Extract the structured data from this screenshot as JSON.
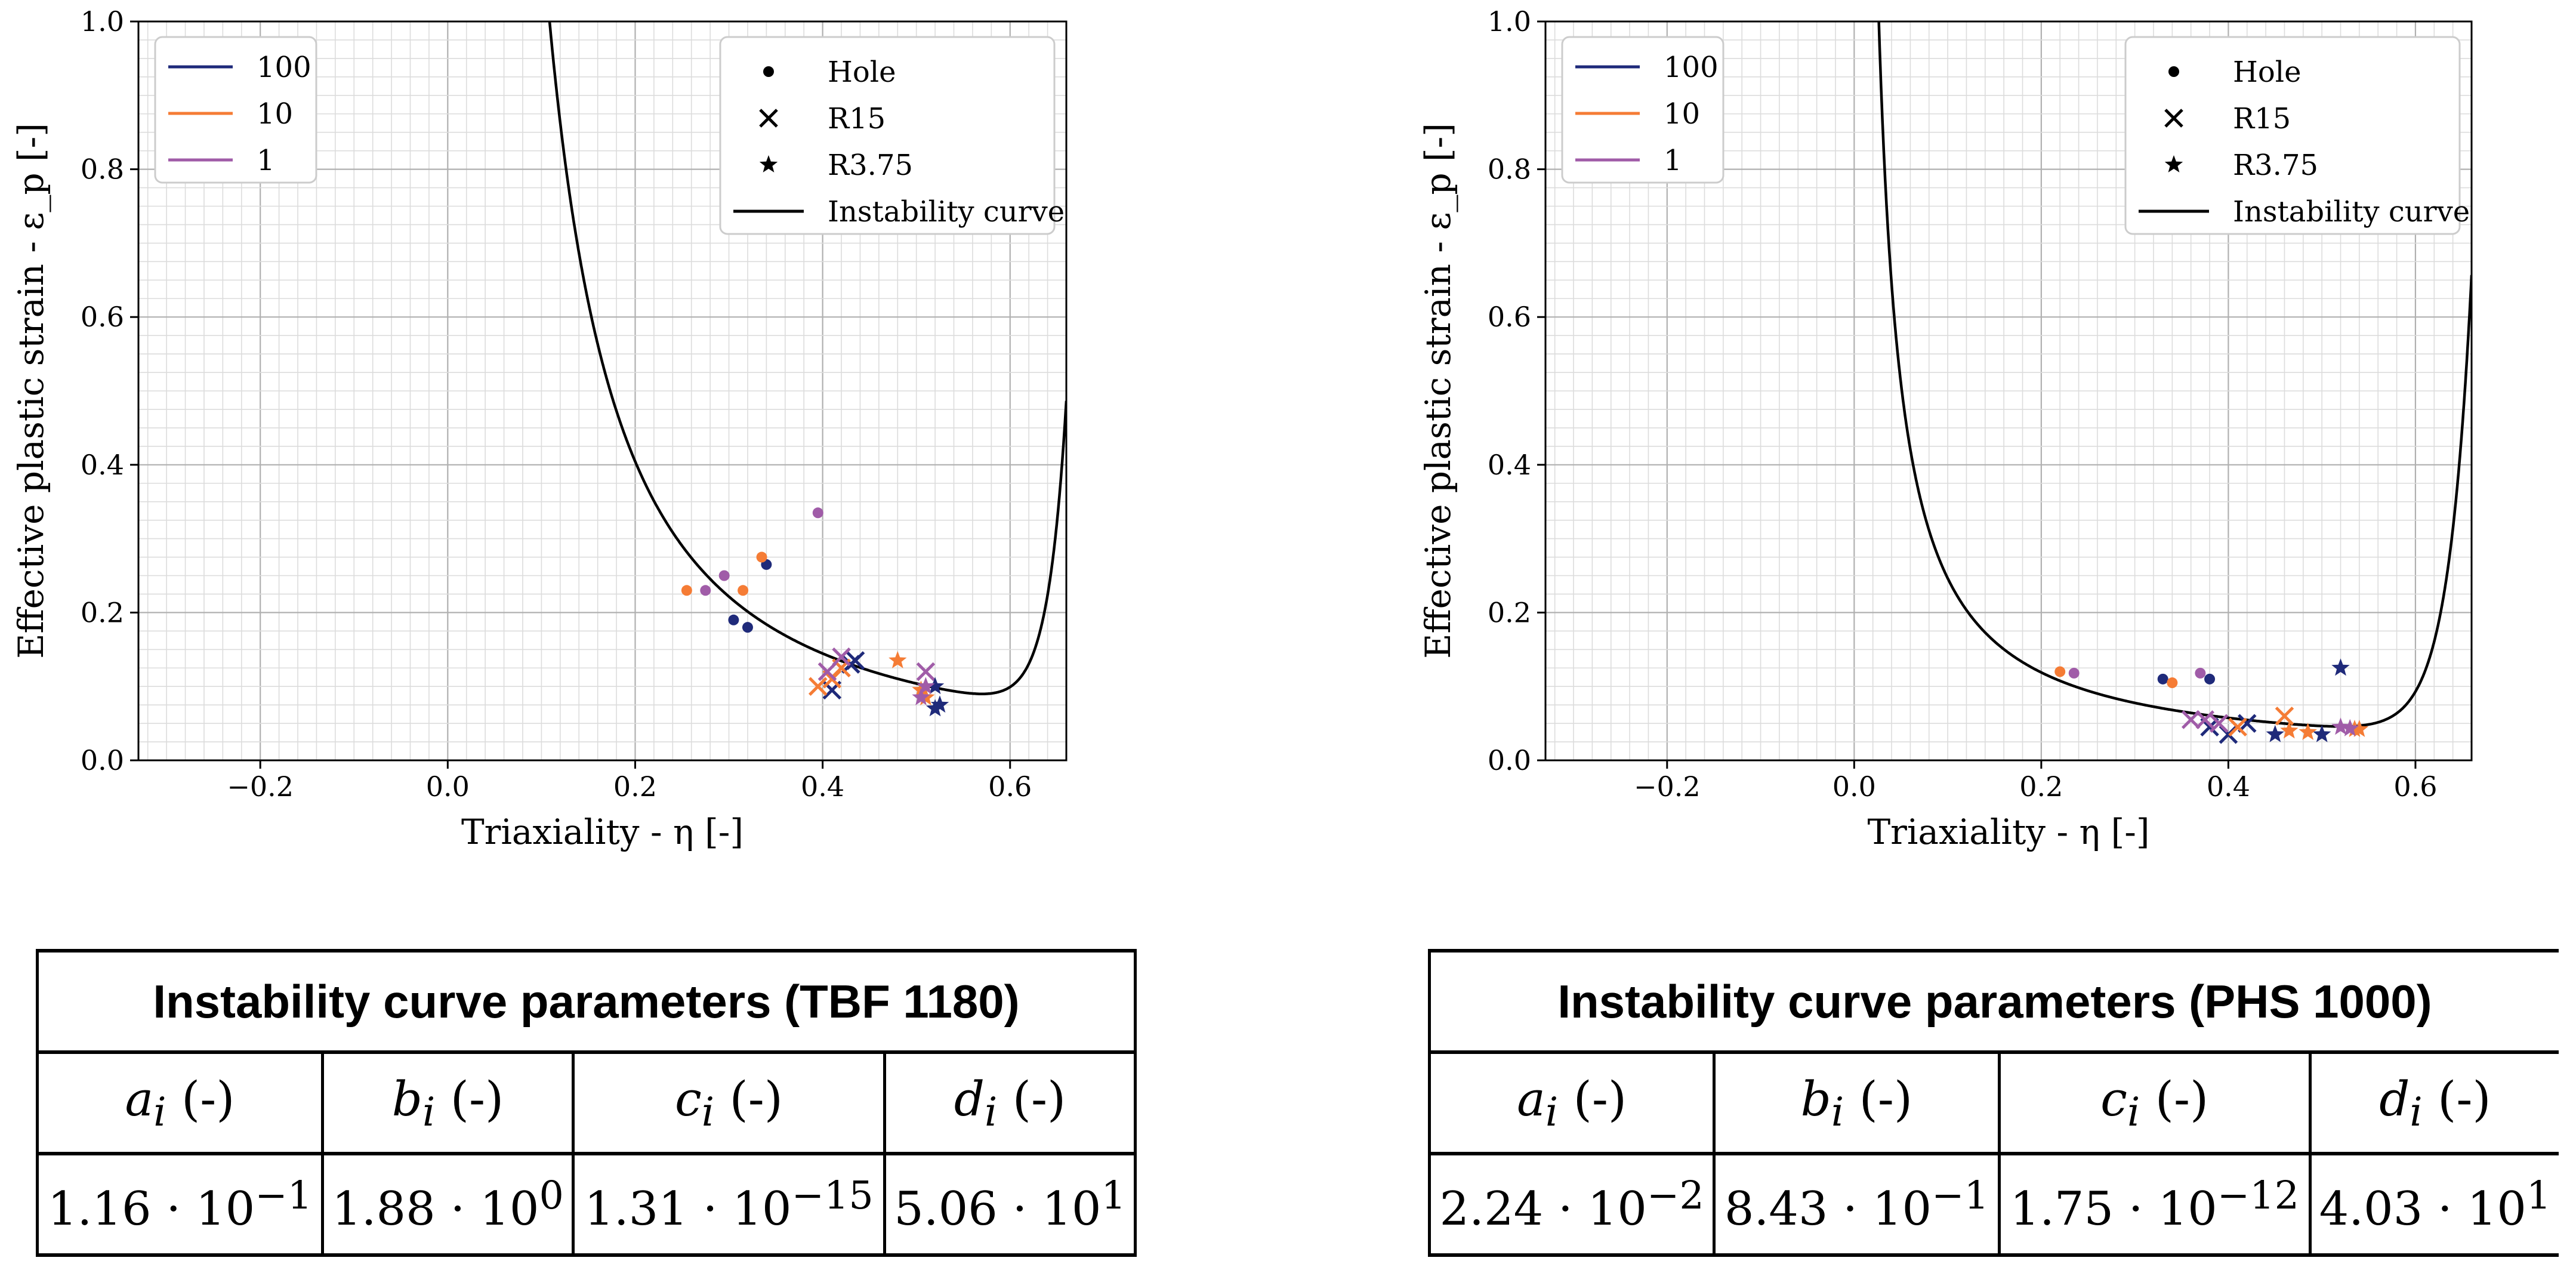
{
  "chart_data": [
    {
      "type": "scatter",
      "xlabel": "Triaxiality - η [-]",
      "ylabel": "Effective plastic strain - ε_p [-]",
      "xlim": [
        -0.33,
        0.66
      ],
      "ylim": [
        0.0,
        1.0
      ],
      "xticks": [
        -0.2,
        0.0,
        0.2,
        0.4,
        0.6
      ],
      "xtick_labels": [
        "−0.2",
        "0.0",
        "0.2",
        "0.4",
        "0.6"
      ],
      "yticks": [
        0.0,
        0.2,
        0.4,
        0.6,
        0.8,
        1.0
      ],
      "ytick_labels": [
        "0.0",
        "0.2",
        "0.4",
        "0.6",
        "0.8",
        "1.0"
      ],
      "grid": true,
      "legend_rates": [
        {
          "label": "100",
          "color": "#1f2a7a"
        },
        {
          "label": "10",
          "color": "#f57c35"
        },
        {
          "label": "1",
          "color": "#a05ca8"
        }
      ],
      "legend_markers": [
        {
          "label": "Hole",
          "marker": "dot"
        },
        {
          "label": "R15",
          "marker": "x"
        },
        {
          "label": "R3.75",
          "marker": "star"
        },
        {
          "label": "Instability curve",
          "marker": "line"
        }
      ],
      "curve": {
        "a": 0.116,
        "b": 1.88,
        "c": 1.31e-15,
        "d": 50.6
      },
      "series": [
        {
          "name": "Hole-100",
          "marker": "dot",
          "rate": "100",
          "x": [
            0.305,
            0.32,
            0.34
          ],
          "y": [
            0.19,
            0.18,
            0.265
          ]
        },
        {
          "name": "Hole-10",
          "marker": "dot",
          "rate": "10",
          "x": [
            0.255,
            0.315,
            0.335
          ],
          "y": [
            0.23,
            0.23,
            0.275
          ]
        },
        {
          "name": "Hole-1",
          "marker": "dot",
          "rate": "1",
          "x": [
            0.275,
            0.295,
            0.395
          ],
          "y": [
            0.23,
            0.25,
            0.335
          ]
        },
        {
          "name": "R15-100",
          "marker": "x",
          "rate": "100",
          "x": [
            0.41,
            0.43,
            0.435
          ],
          "y": [
            0.095,
            0.13,
            0.135
          ]
        },
        {
          "name": "R15-10",
          "marker": "x",
          "rate": "10",
          "x": [
            0.395,
            0.41,
            0.42
          ],
          "y": [
            0.1,
            0.11,
            0.125
          ]
        },
        {
          "name": "R15-1",
          "marker": "x",
          "rate": "1",
          "x": [
            0.405,
            0.42,
            0.51
          ],
          "y": [
            0.12,
            0.14,
            0.12
          ]
        },
        {
          "name": "R3.75-100",
          "marker": "star",
          "rate": "100",
          "x": [
            0.52,
            0.525,
            0.52
          ],
          "y": [
            0.07,
            0.075,
            0.1
          ]
        },
        {
          "name": "R3.75-10",
          "marker": "star",
          "rate": "10",
          "x": [
            0.48,
            0.505,
            0.51
          ],
          "y": [
            0.135,
            0.095,
            0.085
          ]
        },
        {
          "name": "R3.75-1",
          "marker": "star",
          "rate": "1",
          "x": [
            0.51,
            0.505
          ],
          "y": [
            0.1,
            0.085
          ]
        }
      ]
    },
    {
      "type": "scatter",
      "xlabel": "Triaxiality - η [-]",
      "ylabel": "Effective plastic strain - ε_p [-]",
      "xlim": [
        -0.33,
        0.66
      ],
      "ylim": [
        0.0,
        1.0
      ],
      "xticks": [
        -0.2,
        0.0,
        0.2,
        0.4,
        0.6
      ],
      "xtick_labels": [
        "−0.2",
        "0.0",
        "0.2",
        "0.4",
        "0.6"
      ],
      "yticks": [
        0.0,
        0.2,
        0.4,
        0.6,
        0.8,
        1.0
      ],
      "ytick_labels": [
        "0.0",
        "0.2",
        "0.4",
        "0.6",
        "0.8",
        "1.0"
      ],
      "grid": true,
      "legend_rates": [
        {
          "label": "100",
          "color": "#1f2a7a"
        },
        {
          "label": "10",
          "color": "#f57c35"
        },
        {
          "label": "1",
          "color": "#a05ca8"
        }
      ],
      "legend_markers": [
        {
          "label": "Hole",
          "marker": "dot"
        },
        {
          "label": "R15",
          "marker": "x"
        },
        {
          "label": "R3.75",
          "marker": "star"
        },
        {
          "label": "Instability curve",
          "marker": "line"
        }
      ],
      "curve": {
        "a": 0.0224,
        "b": 0.843,
        "c": 1.75e-12,
        "d": 40.3
      },
      "series": [
        {
          "name": "Hole-100",
          "marker": "dot",
          "rate": "100",
          "x": [
            0.33,
            0.38
          ],
          "y": [
            0.11,
            0.11
          ]
        },
        {
          "name": "Hole-10",
          "marker": "dot",
          "rate": "10",
          "x": [
            0.22,
            0.34
          ],
          "y": [
            0.12,
            0.105
          ]
        },
        {
          "name": "Hole-1",
          "marker": "dot",
          "rate": "1",
          "x": [
            0.235,
            0.37
          ],
          "y": [
            0.118,
            0.118
          ]
        },
        {
          "name": "R15-100",
          "marker": "x",
          "rate": "100",
          "x": [
            0.38,
            0.4,
            0.42
          ],
          "y": [
            0.045,
            0.035,
            0.05
          ]
        },
        {
          "name": "R15-10",
          "marker": "x",
          "rate": "10",
          "x": [
            0.46,
            0.41
          ],
          "y": [
            0.06,
            0.045
          ]
        },
        {
          "name": "R15-1",
          "marker": "x",
          "rate": "1",
          "x": [
            0.36,
            0.375,
            0.39
          ],
          "y": [
            0.055,
            0.055,
            0.05
          ]
        },
        {
          "name": "R3.75-100",
          "marker": "star",
          "rate": "100",
          "x": [
            0.45,
            0.5,
            0.52
          ],
          "y": [
            0.035,
            0.035,
            0.125
          ]
        },
        {
          "name": "R3.75-10",
          "marker": "star",
          "rate": "10",
          "x": [
            0.465,
            0.485,
            0.535,
            0.54
          ],
          "y": [
            0.04,
            0.038,
            0.042,
            0.042
          ]
        },
        {
          "name": "R3.75-1",
          "marker": "star",
          "rate": "1",
          "x": [
            0.52,
            0.53
          ],
          "y": [
            0.045,
            0.043
          ]
        }
      ]
    }
  ],
  "tables": [
    {
      "title": "Instability curve parameters (TBF 1180)",
      "headers": [
        {
          "sym": "a",
          "sub": "i",
          "unit": " (-)"
        },
        {
          "sym": "b",
          "sub": "i",
          "unit": " (-)"
        },
        {
          "sym": "c",
          "sub": "i",
          "unit": " (-)"
        },
        {
          "sym": "d",
          "sub": "i",
          "unit": " (-)"
        }
      ],
      "values": [
        {
          "mant": "1.16",
          "exp": "−1"
        },
        {
          "mant": "1.88",
          "exp": "0"
        },
        {
          "mant": "1.31",
          "exp": "−15"
        },
        {
          "mant": "5.06",
          "exp": "1"
        }
      ]
    },
    {
      "title": "Instability curve parameters (PHS 1000)",
      "headers": [
        {
          "sym": "a",
          "sub": "i",
          "unit": " (-)"
        },
        {
          "sym": "b",
          "sub": "i",
          "unit": " (-)"
        },
        {
          "sym": "c",
          "sub": "i",
          "unit": " (-)"
        },
        {
          "sym": "d",
          "sub": "i",
          "unit": " (-)"
        }
      ],
      "values": [
        {
          "mant": "2.24",
          "exp": "−2"
        },
        {
          "mant": "8.43",
          "exp": "−1"
        },
        {
          "mant": "1.75",
          "exp": "−12"
        },
        {
          "mant": "4.03",
          "exp": "1"
        }
      ]
    }
  ],
  "times_symbol": "·",
  "base": "10"
}
